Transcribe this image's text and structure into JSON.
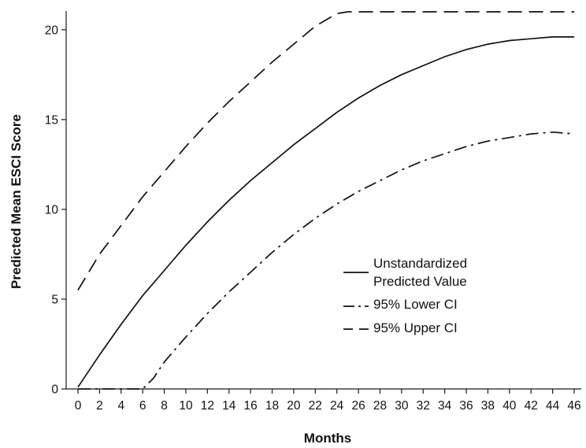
{
  "chart_data": {
    "type": "line",
    "xlabel": "Months",
    "ylabel": "Predicted Mean ESCI Score",
    "xlim": [
      0,
      46
    ],
    "ylim": [
      0,
      21
    ],
    "xticks": [
      0,
      2,
      4,
      6,
      8,
      10,
      12,
      14,
      16,
      18,
      20,
      22,
      24,
      26,
      28,
      30,
      32,
      34,
      36,
      38,
      40,
      42,
      44,
      46
    ],
    "yticks": [
      0,
      5,
      10,
      15,
      20
    ],
    "grid": false,
    "legend_position": "center-right",
    "series": [
      {
        "name": "Unstandardized Predicted Value",
        "line_style": "solid",
        "x": [
          0,
          2,
          4,
          6,
          8,
          10,
          12,
          14,
          16,
          18,
          20,
          22,
          24,
          26,
          28,
          30,
          32,
          34,
          36,
          38,
          40,
          42,
          44,
          46
        ],
        "y": [
          0.1,
          1.9,
          3.6,
          5.2,
          6.6,
          8.0,
          9.3,
          10.5,
          11.6,
          12.6,
          13.6,
          14.5,
          15.4,
          16.2,
          16.9,
          17.5,
          18.0,
          18.5,
          18.9,
          19.2,
          19.4,
          19.5,
          19.6,
          19.6
        ]
      },
      {
        "name": "95% Lower CI",
        "line_style": "dash-dot",
        "x": [
          0,
          2,
          4,
          6,
          7,
          8,
          10,
          12,
          14,
          16,
          18,
          20,
          22,
          24,
          26,
          28,
          30,
          32,
          34,
          36,
          38,
          40,
          42,
          44,
          46
        ],
        "y": [
          0,
          0,
          0,
          0,
          0.6,
          1.5,
          2.9,
          4.2,
          5.4,
          6.5,
          7.6,
          8.6,
          9.5,
          10.3,
          11.0,
          11.6,
          12.2,
          12.7,
          13.1,
          13.5,
          13.8,
          14.0,
          14.2,
          14.3,
          14.2
        ]
      },
      {
        "name": "95% Upper CI",
        "line_style": "dashed",
        "x": [
          0,
          2,
          4,
          6,
          8,
          10,
          12,
          14,
          16,
          18,
          20,
          22,
          24,
          25,
          26,
          28,
          30,
          32,
          34,
          36,
          38,
          40,
          42,
          44,
          46
        ],
        "y": [
          5.5,
          7.5,
          9.1,
          10.7,
          12.1,
          13.5,
          14.8,
          16.0,
          17.1,
          18.2,
          19.2,
          20.2,
          20.9,
          21.0,
          21.0,
          21.0,
          21.0,
          21.0,
          21.0,
          21.0,
          21.0,
          21.0,
          21.0,
          21.0,
          21.0
        ]
      }
    ],
    "legend_lines": [
      [
        "Unstandardized",
        "Predicted Value"
      ],
      [
        "95% Lower CI"
      ],
      [
        "95% Upper CI"
      ]
    ]
  }
}
